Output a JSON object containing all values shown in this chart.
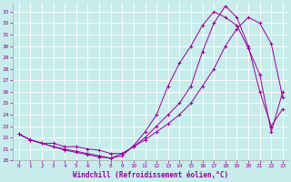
{
  "xlabel": "Windchill (Refroidissement éolien,°C)",
  "background_color": "#c8ecec",
  "line_color": "#990099",
  "xlim": [
    -0.5,
    23.5
  ],
  "ylim": [
    20,
    33.8
  ],
  "yticks": [
    20,
    21,
    22,
    23,
    24,
    25,
    26,
    27,
    28,
    29,
    30,
    31,
    32,
    33
  ],
  "xticks": [
    0,
    1,
    2,
    3,
    4,
    5,
    6,
    7,
    8,
    9,
    10,
    11,
    12,
    13,
    14,
    15,
    16,
    17,
    18,
    19,
    20,
    21,
    22,
    23
  ],
  "line1_x": [
    0,
    1,
    2,
    3,
    4,
    5,
    6,
    7,
    8,
    9,
    10,
    11,
    12,
    13,
    14,
    15,
    16,
    17,
    18,
    19,
    20,
    21,
    22,
    23
  ],
  "line1_y": [
    22.3,
    21.8,
    21.5,
    21.5,
    21.2,
    21.2,
    21.0,
    20.9,
    20.6,
    20.6,
    21.2,
    21.8,
    22.5,
    23.2,
    24.0,
    25.0,
    26.5,
    28.0,
    30.0,
    31.5,
    32.5,
    32.0,
    30.2,
    25.5
  ],
  "line2_x": [
    0,
    1,
    2,
    3,
    4,
    5,
    6,
    7,
    8,
    9,
    10,
    11,
    12,
    13,
    14,
    15,
    16,
    17,
    18,
    19,
    20,
    21,
    22,
    23
  ],
  "line2_y": [
    22.3,
    21.8,
    21.5,
    21.2,
    21.0,
    20.8,
    20.6,
    20.4,
    20.2,
    20.4,
    21.3,
    22.5,
    24.0,
    26.5,
    28.5,
    30.0,
    31.8,
    33.0,
    32.5,
    31.8,
    29.8,
    27.5,
    22.5,
    26.0
  ],
  "line3_x": [
    0,
    1,
    2,
    3,
    4,
    5,
    6,
    7,
    8,
    9,
    10,
    11,
    12,
    13,
    14,
    15,
    16,
    17,
    18,
    19,
    20,
    21,
    22,
    23
  ],
  "line3_y": [
    22.3,
    21.8,
    21.5,
    21.2,
    20.9,
    20.7,
    20.5,
    20.3,
    20.2,
    20.6,
    21.2,
    22.0,
    23.0,
    24.0,
    25.0,
    26.5,
    29.5,
    32.0,
    33.5,
    32.5,
    30.0,
    26.0,
    23.0,
    24.5
  ]
}
